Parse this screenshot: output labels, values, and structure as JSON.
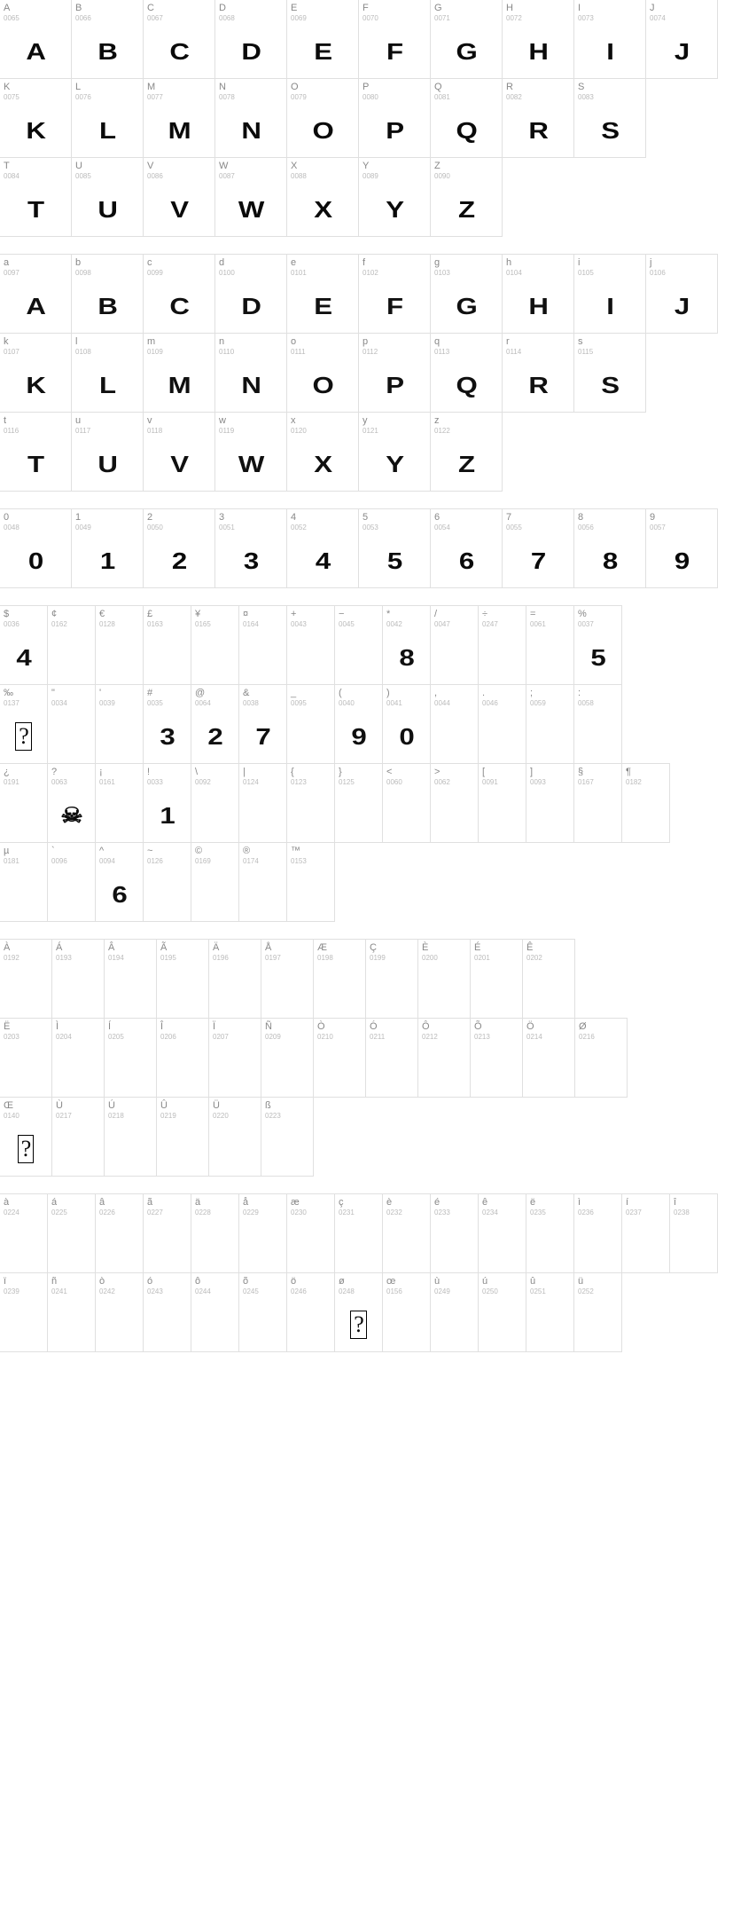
{
  "sections": [
    {
      "id": "upper",
      "cells": [
        {
          "l": "A",
          "c": "0065",
          "g": "A"
        },
        {
          "l": "B",
          "c": "0066",
          "g": "B"
        },
        {
          "l": "C",
          "c": "0067",
          "g": "C"
        },
        {
          "l": "D",
          "c": "0068",
          "g": "D"
        },
        {
          "l": "E",
          "c": "0069",
          "g": "E"
        },
        {
          "l": "F",
          "c": "0070",
          "g": "F"
        },
        {
          "l": "G",
          "c": "0071",
          "g": "G"
        },
        {
          "l": "H",
          "c": "0072",
          "g": "H"
        },
        {
          "l": "I",
          "c": "0073",
          "g": "I"
        },
        {
          "l": "J",
          "c": "0074",
          "g": "J"
        },
        {
          "l": "K",
          "c": "0075",
          "g": "K"
        },
        {
          "l": "L",
          "c": "0076",
          "g": "L"
        },
        {
          "l": "M",
          "c": "0077",
          "g": "M"
        },
        {
          "l": "N",
          "c": "0078",
          "g": "N"
        },
        {
          "l": "O",
          "c": "0079",
          "g": "O"
        },
        {
          "l": "P",
          "c": "0080",
          "g": "P"
        },
        {
          "l": "Q",
          "c": "0081",
          "g": "Q"
        },
        {
          "l": "R",
          "c": "0082",
          "g": "R"
        },
        {
          "l": "S",
          "c": "0083",
          "g": "S"
        },
        {
          "l": "T",
          "c": "0084",
          "g": "T"
        },
        {
          "l": "U",
          "c": "0085",
          "g": "U"
        },
        {
          "l": "V",
          "c": "0086",
          "g": "V"
        },
        {
          "l": "W",
          "c": "0087",
          "g": "W"
        },
        {
          "l": "X",
          "c": "0088",
          "g": "X"
        },
        {
          "l": "Y",
          "c": "0089",
          "g": "Y"
        },
        {
          "l": "Z",
          "c": "0090",
          "g": "Z"
        }
      ]
    },
    {
      "id": "lower",
      "cells": [
        {
          "l": "a",
          "c": "0097",
          "g": "A",
          "d": 1
        },
        {
          "l": "b",
          "c": "0098",
          "g": "B",
          "d": 1
        },
        {
          "l": "c",
          "c": "0099",
          "g": "C",
          "d": 1
        },
        {
          "l": "d",
          "c": "0100",
          "g": "D",
          "d": 1
        },
        {
          "l": "e",
          "c": "0101",
          "g": "E",
          "d": 1
        },
        {
          "l": "f",
          "c": "0102",
          "g": "F",
          "d": 1
        },
        {
          "l": "g",
          "c": "0103",
          "g": "G",
          "d": 1
        },
        {
          "l": "h",
          "c": "0104",
          "g": "H",
          "d": 1
        },
        {
          "l": "i",
          "c": "0105",
          "g": "I",
          "d": 1
        },
        {
          "l": "j",
          "c": "0106",
          "g": "J",
          "d": 1
        },
        {
          "l": "k",
          "c": "0107",
          "g": "K",
          "d": 1
        },
        {
          "l": "l",
          "c": "0108",
          "g": "L",
          "d": 1
        },
        {
          "l": "m",
          "c": "0109",
          "g": "M",
          "d": 1
        },
        {
          "l": "n",
          "c": "0110",
          "g": "N",
          "d": 1
        },
        {
          "l": "o",
          "c": "0111",
          "g": "O",
          "d": 1
        },
        {
          "l": "p",
          "c": "0112",
          "g": "P",
          "d": 1
        },
        {
          "l": "q",
          "c": "0113",
          "g": "Q",
          "d": 1
        },
        {
          "l": "r",
          "c": "0114",
          "g": "R",
          "d": 1
        },
        {
          "l": "s",
          "c": "0115",
          "g": "S",
          "d": 1
        },
        {
          "l": "t",
          "c": "0116",
          "g": "T",
          "d": 1
        },
        {
          "l": "u",
          "c": "0117",
          "g": "U",
          "d": 1
        },
        {
          "l": "v",
          "c": "0118",
          "g": "V",
          "d": 1
        },
        {
          "l": "w",
          "c": "0119",
          "g": "W",
          "d": 1
        },
        {
          "l": "x",
          "c": "0120",
          "g": "X",
          "d": 1
        },
        {
          "l": "y",
          "c": "0121",
          "g": "Y",
          "d": 1
        },
        {
          "l": "z",
          "c": "0122",
          "g": "Z",
          "d": 1
        }
      ]
    },
    {
      "id": "digits",
      "cells": [
        {
          "l": "0",
          "c": "0048",
          "g": "0"
        },
        {
          "l": "1",
          "c": "0049",
          "g": "1"
        },
        {
          "l": "2",
          "c": "0050",
          "g": "2"
        },
        {
          "l": "3",
          "c": "0051",
          "g": "3"
        },
        {
          "l": "4",
          "c": "0052",
          "g": "4"
        },
        {
          "l": "5",
          "c": "0053",
          "g": "5"
        },
        {
          "l": "6",
          "c": "0054",
          "g": "6"
        },
        {
          "l": "7",
          "c": "0055",
          "g": "7"
        },
        {
          "l": "8",
          "c": "0056",
          "g": "8"
        },
        {
          "l": "9",
          "c": "0057",
          "g": "9"
        }
      ]
    },
    {
      "id": "sym1",
      "cells": [
        {
          "l": "$",
          "c": "0036",
          "g": "4",
          "d": 1
        },
        {
          "l": "¢",
          "c": "0162",
          "g": ""
        },
        {
          "l": "€",
          "c": "0128",
          "g": ""
        },
        {
          "l": "£",
          "c": "0163",
          "g": ""
        },
        {
          "l": "¥",
          "c": "0165",
          "g": ""
        },
        {
          "l": "¤",
          "c": "0164",
          "g": ""
        },
        {
          "l": "+",
          "c": "0043",
          "g": ""
        },
        {
          "l": "−",
          "c": "0045",
          "g": ""
        },
        {
          "l": "*",
          "c": "0042",
          "g": "8",
          "d": 1
        },
        {
          "l": "/",
          "c": "0047",
          "g": ""
        },
        {
          "l": "÷",
          "c": "0247",
          "g": ""
        },
        {
          "l": "=",
          "c": "0061",
          "g": ""
        },
        {
          "l": "%",
          "c": "0037",
          "g": "5",
          "d": 1
        },
        {
          "l": "‰",
          "c": "0137",
          "g": "?",
          "e": 1
        },
        {
          "l": "\"",
          "c": "0034",
          "g": ""
        },
        {
          "l": "'",
          "c": "0039",
          "g": ""
        },
        {
          "l": "#",
          "c": "0035",
          "g": "3",
          "d": 1
        },
        {
          "l": "@",
          "c": "0064",
          "g": "2",
          "d": 1
        },
        {
          "l": "&",
          "c": "0038",
          "g": "7",
          "d": 1
        },
        {
          "l": "_",
          "c": "0095",
          "g": ""
        },
        {
          "l": "(",
          "c": "0040",
          "g": "9",
          "d": 1
        },
        {
          "l": ")",
          "c": "0041",
          "g": "0",
          "d": 1
        },
        {
          "l": ",",
          "c": "0044",
          "g": ""
        },
        {
          "l": ".",
          "c": "0046",
          "g": ""
        },
        {
          "l": ";",
          "c": "0059",
          "g": ""
        },
        {
          "l": ":",
          "c": "0058",
          "g": ""
        },
        {
          "l": "¿",
          "c": "0191",
          "g": ""
        },
        {
          "l": "?",
          "c": "0063",
          "g": "☠",
          "sk": 1
        },
        {
          "l": "¡",
          "c": "0161",
          "g": ""
        },
        {
          "l": "!",
          "c": "0033",
          "g": "1",
          "d": 1
        },
        {
          "l": "\\",
          "c": "0092",
          "g": ""
        },
        {
          "l": "|",
          "c": "0124",
          "g": ""
        },
        {
          "l": "{",
          "c": "0123",
          "g": ""
        },
        {
          "l": "}",
          "c": "0125",
          "g": ""
        },
        {
          "l": "<",
          "c": "0060",
          "g": ""
        },
        {
          "l": ">",
          "c": "0062",
          "g": ""
        },
        {
          "l": "[",
          "c": "0091",
          "g": ""
        },
        {
          "l": "]",
          "c": "0093",
          "g": ""
        },
        {
          "l": "§",
          "c": "0167",
          "g": ""
        },
        {
          "l": "¶",
          "c": "0182",
          "g": ""
        },
        {
          "l": "µ",
          "c": "0181",
          "g": ""
        },
        {
          "l": "`",
          "c": "0096",
          "g": ""
        },
        {
          "l": "^",
          "c": "0094",
          "g": "6",
          "d": 1
        },
        {
          "l": "~",
          "c": "0126",
          "g": ""
        },
        {
          "l": "©",
          "c": "0169",
          "g": ""
        },
        {
          "l": "®",
          "c": "0174",
          "g": ""
        },
        {
          "l": "™",
          "c": "0153",
          "g": ""
        }
      ]
    },
    {
      "id": "acc1",
      "cells": [
        {
          "l": "À",
          "c": "0192",
          "g": ""
        },
        {
          "l": "Á",
          "c": "0193",
          "g": ""
        },
        {
          "l": "Â",
          "c": "0194",
          "g": ""
        },
        {
          "l": "Ã",
          "c": "0195",
          "g": ""
        },
        {
          "l": "Ä",
          "c": "0196",
          "g": ""
        },
        {
          "l": "Å",
          "c": "0197",
          "g": ""
        },
        {
          "l": "Æ",
          "c": "0198",
          "g": ""
        },
        {
          "l": "Ç",
          "c": "0199",
          "g": ""
        },
        {
          "l": "È",
          "c": "0200",
          "g": ""
        },
        {
          "l": "É",
          "c": "0201",
          "g": ""
        },
        {
          "l": "Ê",
          "c": "0202",
          "g": ""
        },
        {
          "l": "Ë",
          "c": "0203",
          "g": ""
        },
        {
          "l": "Ì",
          "c": "0204",
          "g": ""
        },
        {
          "l": "Í",
          "c": "0205",
          "g": ""
        },
        {
          "l": "Î",
          "c": "0206",
          "g": ""
        },
        {
          "l": "Ï",
          "c": "0207",
          "g": ""
        },
        {
          "l": "Ñ",
          "c": "0209",
          "g": ""
        },
        {
          "l": "Ò",
          "c": "0210",
          "g": ""
        },
        {
          "l": "Ó",
          "c": "0211",
          "g": ""
        },
        {
          "l": "Ô",
          "c": "0212",
          "g": ""
        },
        {
          "l": "Õ",
          "c": "0213",
          "g": ""
        },
        {
          "l": "Ö",
          "c": "0214",
          "g": ""
        },
        {
          "l": "Ø",
          "c": "0216",
          "g": ""
        },
        {
          "l": "Œ",
          "c": "0140",
          "g": "?",
          "e": 1
        },
        {
          "l": "Ù",
          "c": "0217",
          "g": ""
        },
        {
          "l": "Ú",
          "c": "0218",
          "g": ""
        },
        {
          "l": "Û",
          "c": "0219",
          "g": ""
        },
        {
          "l": "Ü",
          "c": "0220",
          "g": ""
        },
        {
          "l": "ß",
          "c": "0223",
          "g": ""
        }
      ]
    },
    {
      "id": "acc2",
      "cells": [
        {
          "l": "à",
          "c": "0224",
          "g": ""
        },
        {
          "l": "á",
          "c": "0225",
          "g": ""
        },
        {
          "l": "â",
          "c": "0226",
          "g": ""
        },
        {
          "l": "ã",
          "c": "0227",
          "g": ""
        },
        {
          "l": "ä",
          "c": "0228",
          "g": ""
        },
        {
          "l": "å",
          "c": "0229",
          "g": ""
        },
        {
          "l": "æ",
          "c": "0230",
          "g": ""
        },
        {
          "l": "ç",
          "c": "0231",
          "g": ""
        },
        {
          "l": "è",
          "c": "0232",
          "g": ""
        },
        {
          "l": "é",
          "c": "0233",
          "g": ""
        },
        {
          "l": "ê",
          "c": "0234",
          "g": ""
        },
        {
          "l": "ë",
          "c": "0235",
          "g": ""
        },
        {
          "l": "ì",
          "c": "0236",
          "g": ""
        },
        {
          "l": "í",
          "c": "0237",
          "g": ""
        },
        {
          "l": "î",
          "c": "0238",
          "g": ""
        },
        {
          "l": "ï",
          "c": "0239",
          "g": ""
        },
        {
          "l": "ñ",
          "c": "0241",
          "g": ""
        },
        {
          "l": "ò",
          "c": "0242",
          "g": ""
        },
        {
          "l": "ó",
          "c": "0243",
          "g": ""
        },
        {
          "l": "ô",
          "c": "0244",
          "g": ""
        },
        {
          "l": "õ",
          "c": "0245",
          "g": ""
        },
        {
          "l": "ö",
          "c": "0246",
          "g": ""
        },
        {
          "l": "ø",
          "c": "0248",
          "g": "?",
          "e": 1
        },
        {
          "l": "œ",
          "c": "0156",
          "g": ""
        },
        {
          "l": "ù",
          "c": "0249",
          "g": ""
        },
        {
          "l": "ú",
          "c": "0250",
          "g": ""
        },
        {
          "l": "û",
          "c": "0251",
          "g": ""
        },
        {
          "l": "ü",
          "c": "0252",
          "g": ""
        }
      ]
    }
  ],
  "cellWidths": {
    "upper": 82,
    "lower": 82,
    "digits": 82,
    "sym1": 55,
    "acc1": 60,
    "acc2": 55
  },
  "rowBreaks": {
    "upper": [
      10,
      19
    ],
    "lower": [
      10,
      19
    ],
    "digits": [],
    "sym1": [
      13,
      26,
      40
    ],
    "acc1": [
      11,
      23
    ],
    "acc2": [
      15
    ]
  },
  "colors": {
    "border": "#e0e0e0",
    "labelChar": "#888888",
    "labelCode": "#bbbbbb",
    "glyph": "#0a0a0a",
    "bg": "#ffffff"
  }
}
